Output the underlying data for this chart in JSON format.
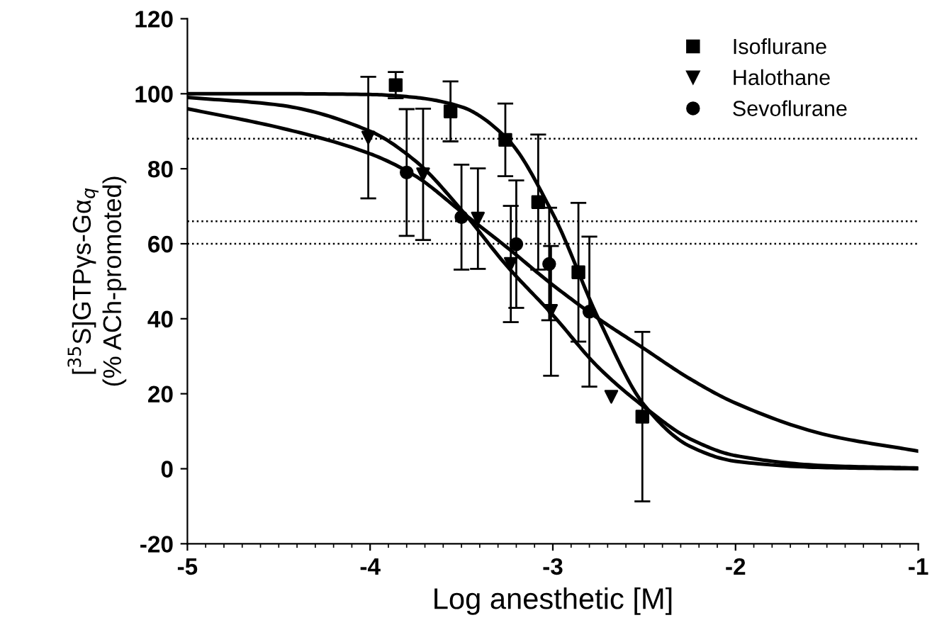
{
  "chart_data": {
    "type": "scatter",
    "xlabel": "Log anesthetic [M]",
    "ylabel": "[$^{35}$S]GTPγs-Gα$_{q}$\n(% ACh-promoted)",
    "xlim": [
      -5,
      -1
    ],
    "xticks": [
      -5,
      -4,
      -3,
      -2,
      -1
    ],
    "ylim": [
      -20,
      120
    ],
    "yticks": [
      -20,
      0,
      20,
      40,
      60,
      80,
      100,
      120
    ],
    "grid": false,
    "legend": "top right",
    "ref_lines": [
      {
        "axis": "y",
        "value": 88,
        "line_style": "dotted",
        "color": "#000000"
      },
      {
        "axis": "y",
        "value": 66,
        "line_style": "dotted",
        "color": "#000000"
      },
      {
        "axis": "y",
        "value": 60,
        "line_style": "dotted",
        "color": "#000000"
      }
    ],
    "series": [
      {
        "name": "Isoflurane",
        "marker": "square",
        "color": "#000000",
        "x": [
          -3.86,
          -3.56,
          -3.26,
          -3.08,
          -2.86,
          -2.51
        ],
        "values": [
          102.3,
          95.3,
          87.7,
          71.1,
          52.4,
          13.9
        ],
        "errors": [
          3.5,
          8,
          9.7,
          18,
          18.5,
          22.6
        ]
      },
      {
        "name": "Halothane",
        "marker": "triangle",
        "color": "#000000",
        "x": [
          -4.01,
          -3.71,
          -3.41,
          -3.23,
          -3.01,
          -2.68
        ],
        "values": [
          88.3,
          78.5,
          66.7,
          54.6,
          42.1,
          19.2
        ],
        "errors": [
          16.2,
          17.5,
          13.4,
          15.5,
          17.3,
          null
        ]
      },
      {
        "name": "Sevoflurane",
        "marker": "circle",
        "color": "#000000",
        "x": [
          -3.8,
          -3.5,
          -3.2,
          -3.02,
          -2.8
        ],
        "values": [
          79,
          67.1,
          59.9,
          54.6,
          41.9
        ],
        "errors": [
          16.9,
          14,
          17,
          15,
          20
        ]
      },
      {
        "type": "line",
        "marker": "none",
        "line_style": "solid",
        "color": "#000000",
        "x": [
          -5,
          -4.5,
          -4,
          -3.75,
          -3.5,
          -3.25,
          -3,
          -2.75,
          -2.5,
          -2.25,
          -2,
          -1.5,
          -1
        ],
        "values": [
          100,
          100,
          99.8,
          99,
          96.5,
          88,
          68,
          40,
          17,
          6,
          2,
          0.3,
          0
        ]
      },
      {
        "type": "line",
        "marker": "none",
        "line_style": "solid",
        "color": "#000000",
        "x": [
          -5,
          -4.5,
          -4,
          -3.75,
          -3.5,
          -3.25,
          -3,
          -2.75,
          -2.5,
          -2.25,
          -2,
          -1.5,
          -1
        ],
        "values": [
          99,
          97,
          90,
          82,
          69,
          54,
          41,
          27,
          16.5,
          8,
          3.5,
          0.8,
          0.2
        ]
      },
      {
        "type": "line",
        "marker": "none",
        "line_style": "solid",
        "color": "#000000",
        "x": [
          -5,
          -4.5,
          -4,
          -3.75,
          -3.5,
          -3.25,
          -3,
          -2.75,
          -2.5,
          -2.25,
          -2,
          -1.5,
          -1
        ],
        "values": [
          96,
          91,
          84,
          78,
          68.5,
          59,
          49,
          40,
          32,
          24,
          17.5,
          9,
          4.7
        ]
      }
    ]
  }
}
